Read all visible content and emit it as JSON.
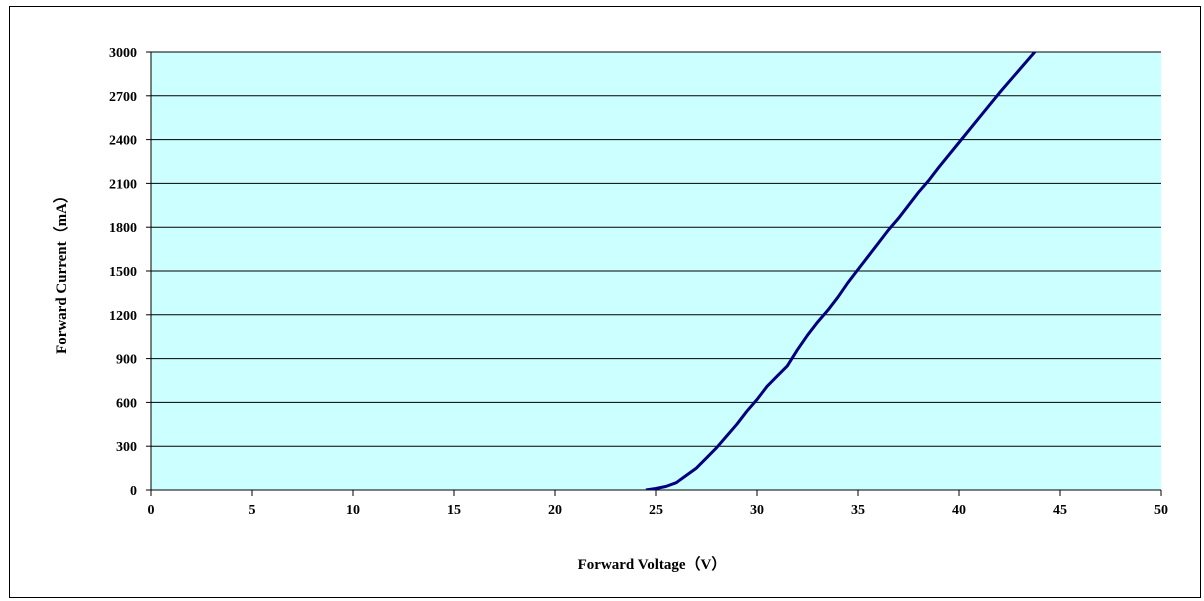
{
  "chart_data": {
    "type": "line",
    "title": "",
    "xlabel": "Forward Voltage（V）",
    "ylabel": "Forward Current（mA）",
    "xlim": [
      0,
      50
    ],
    "ylim": [
      0,
      3000
    ],
    "xticks": [
      0,
      5,
      10,
      15,
      20,
      25,
      30,
      35,
      40,
      45,
      50
    ],
    "yticks": [
      0,
      300,
      600,
      900,
      1200,
      1500,
      1800,
      2100,
      2400,
      2700,
      3000
    ],
    "grid": "horizontal",
    "legend": "none",
    "colors": {
      "plot_bg": "#ccffff",
      "line": "#00007f",
      "grid": "#000000"
    },
    "series": [
      {
        "x": [
          24.5,
          25.0,
          25.5,
          26.0,
          26.5,
          27.0,
          27.5,
          28.0,
          28.5,
          29.0,
          29.5,
          30.0,
          30.5,
          31.0,
          31.5,
          32.0,
          32.5,
          33.0,
          33.5,
          34.0,
          34.5,
          35.0,
          35.5,
          36.0,
          36.5,
          37.0,
          37.5,
          38.0,
          38.5,
          39.0,
          40.0,
          41.0,
          42.0,
          43.0,
          44.0,
          44.3
        ],
        "y": [
          0,
          10,
          25,
          50,
          100,
          150,
          220,
          290,
          370,
          450,
          540,
          620,
          710,
          780,
          850,
          960,
          1060,
          1150,
          1230,
          1320,
          1420,
          1510,
          1600,
          1690,
          1780,
          1860,
          1950,
          2040,
          2120,
          2210,
          2380,
          2550,
          2720,
          2880,
          3040,
          3100
        ]
      }
    ]
  }
}
